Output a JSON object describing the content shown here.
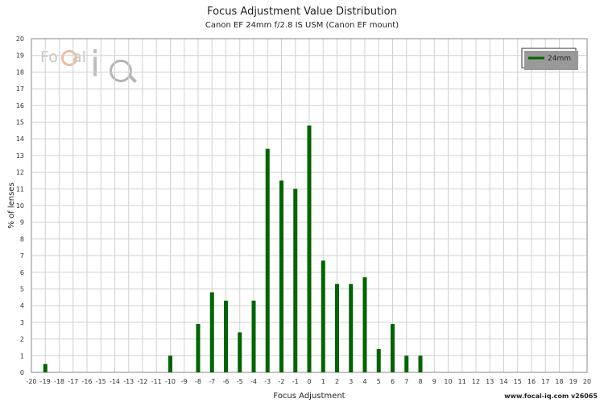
{
  "chart_data": {
    "type": "bar",
    "title": "Focus Adjustment Value Distribution",
    "subtitle": "Canon EF 24mm f/2.8 IS USM (Canon EF mount)",
    "xlabel": "Focus Adjustment",
    "ylabel": "% of lenses",
    "xlim": [
      -20,
      20
    ],
    "ylim": [
      0,
      20
    ],
    "grid": true,
    "legend_position": "top-right",
    "series": [
      {
        "name": "24mm",
        "color": "#006400",
        "points": [
          {
            "x": -19,
            "y": 0.5
          },
          {
            "x": -10,
            "y": 1.0
          },
          {
            "x": -8,
            "y": 2.9
          },
          {
            "x": -7,
            "y": 4.8
          },
          {
            "x": -6,
            "y": 4.3
          },
          {
            "x": -5,
            "y": 2.4
          },
          {
            "x": -4,
            "y": 4.3
          },
          {
            "x": -3,
            "y": 13.4
          },
          {
            "x": -2,
            "y": 11.5
          },
          {
            "x": -1,
            "y": 11.0
          },
          {
            "x": 0,
            "y": 14.8
          },
          {
            "x": 1,
            "y": 6.7
          },
          {
            "x": 2,
            "y": 5.3
          },
          {
            "x": 3,
            "y": 5.3
          },
          {
            "x": 4,
            "y": 5.7
          },
          {
            "x": 5,
            "y": 1.4
          },
          {
            "x": 6,
            "y": 2.9
          },
          {
            "x": 7,
            "y": 1.0
          },
          {
            "x": 8,
            "y": 1.0
          }
        ]
      }
    ]
  },
  "footer": "www.focal-iq.com  v26065",
  "logo": {
    "text1": "Focal",
    "text2": "iQ"
  }
}
